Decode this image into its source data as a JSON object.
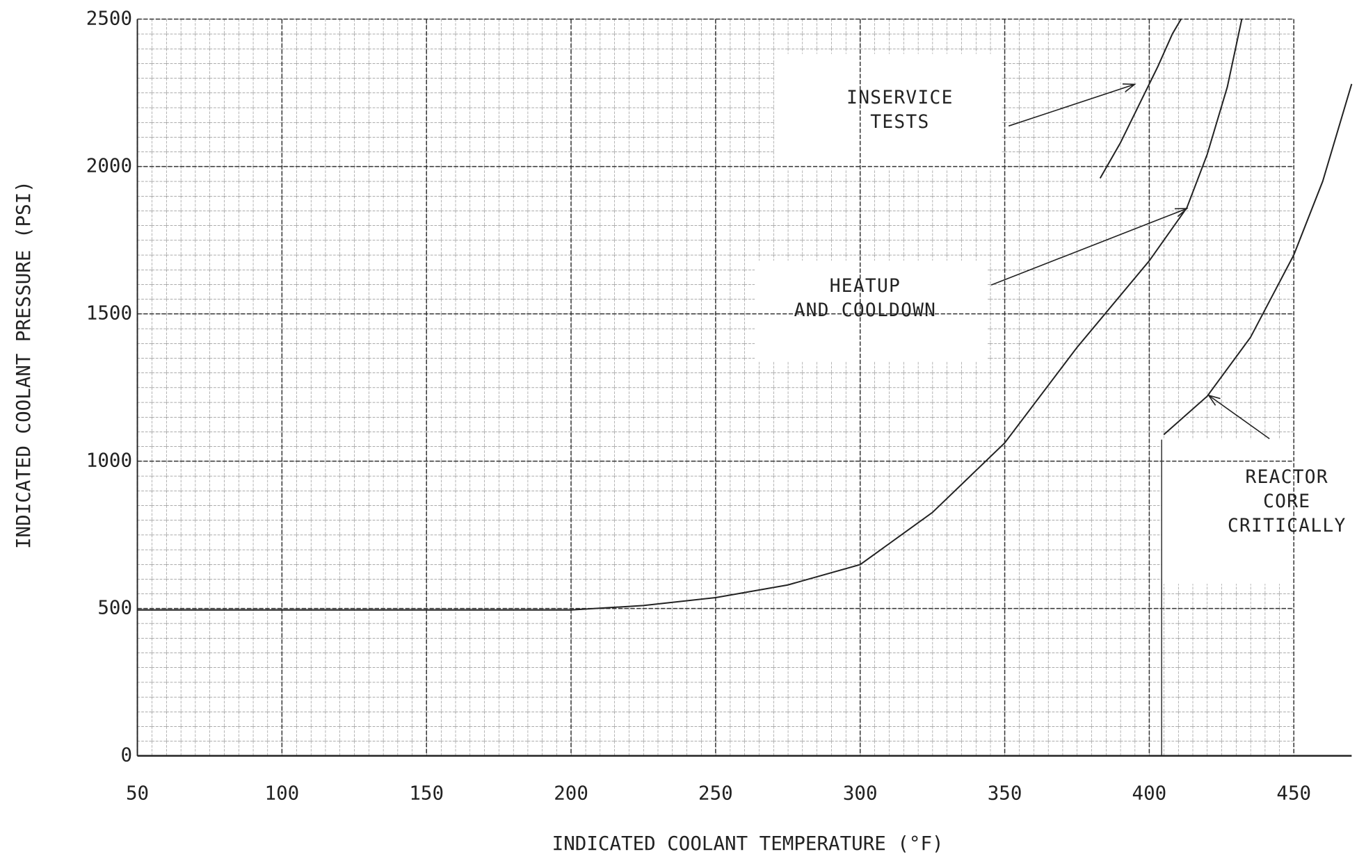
{
  "chart_data": {
    "type": "line",
    "xlabel": "INDICATED COOLANT TEMPERATURE (°F)",
    "ylabel": "INDICATED COOLANT PRESSURE (PSI)",
    "xlim": [
      50,
      470
    ],
    "ylim": [
      0,
      2500
    ],
    "xticks": [
      50,
      100,
      150,
      200,
      250,
      300,
      350,
      400,
      450
    ],
    "yticks": [
      0,
      500,
      1000,
      1500,
      2000,
      2500
    ],
    "grid": true,
    "series": [
      {
        "name": "INSERVICE TESTS",
        "color": "#222222",
        "x": [
          383,
          390,
          397,
          403,
          408,
          411
        ],
        "values": [
          1960,
          2080,
          2220,
          2340,
          2450,
          2500
        ]
      },
      {
        "name": "HEATUP AND COOLDOWN",
        "color": "#222222",
        "x": [
          50,
          100,
          150,
          200,
          225,
          250,
          275,
          300,
          325,
          350,
          375,
          400,
          413,
          420,
          427,
          432
        ],
        "values": [
          495,
          495,
          495,
          495,
          510,
          537,
          580,
          649,
          826,
          1062,
          1386,
          1680,
          1860,
          2040,
          2270,
          2500
        ]
      },
      {
        "name": "REACTOR CORE CRITICALLY",
        "color": "#222222",
        "x": [
          405,
          420,
          435,
          450,
          460,
          470
        ],
        "values": [
          1090,
          1220,
          1420,
          1700,
          1950,
          2280
        ]
      }
    ],
    "annotations": [
      {
        "lines": [
          "INSERVICE",
          "TESTS"
        ]
      },
      {
        "lines": [
          "HEATUP",
          "AND COOLDOWN"
        ]
      },
      {
        "lines": [
          "REACTOR",
          "CORE",
          "CRITICALLY"
        ]
      }
    ]
  }
}
